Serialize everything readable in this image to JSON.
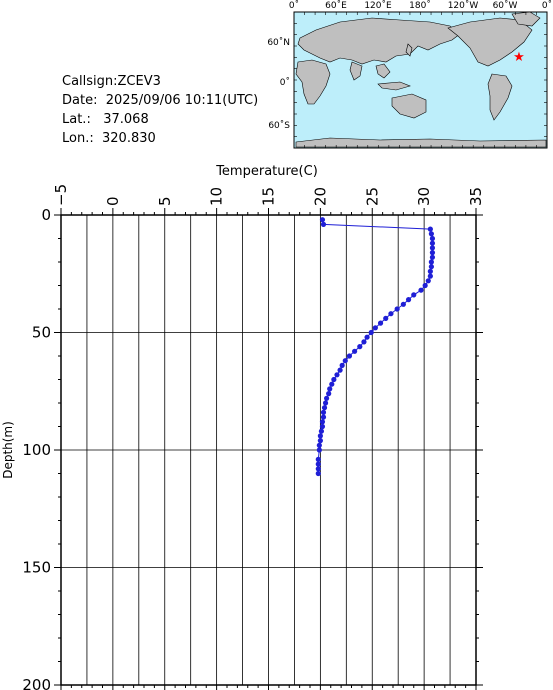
{
  "info": {
    "callsign_label": "Callsign:",
    "callsign": "ZCEV3",
    "date_label": "Date:",
    "date": "2025/09/06 10:11(UTC)",
    "lat_label": "Lat.:",
    "lat": "37.068",
    "lon_label": "Lon.:",
    "lon": "320.830"
  },
  "map": {
    "top_labels": [
      "0˚",
      "60˚E",
      "120˚E",
      "180˚",
      "120˚W",
      "60˚W",
      "0˚"
    ],
    "left_labels": [
      "60˚N",
      "0˚",
      "60˚S"
    ],
    "ocean_color": "#bdeefa",
    "land_color": "#bfbfbf",
    "marker_color": "#ff0000",
    "marker_icon": "star-icon"
  },
  "chart_data": {
    "type": "line",
    "title": "",
    "xlabel": "Temperature(C)",
    "ylabel": "Depth(m)",
    "xlim": [
      -5,
      35
    ],
    "ylim": [
      0,
      200
    ],
    "y_inverted": true,
    "x_ticks": [
      "−5",
      "0",
      "5",
      "10",
      "15",
      "20",
      "25",
      "30",
      "35"
    ],
    "y_ticks": [
      "0",
      "50",
      "100",
      "150",
      "200"
    ],
    "grid": true,
    "series_color": "#1f1fd6",
    "series": [
      {
        "x": [
          20.2,
          20.3,
          30.6,
          30.7,
          30.8,
          30.8,
          30.8,
          30.8,
          30.8,
          30.7,
          30.7,
          30.6,
          30.6,
          30.4,
          30.1,
          29.7,
          29.0,
          28.5,
          28.0,
          27.4,
          26.8,
          26.3,
          25.8,
          25.3,
          24.9,
          24.5,
          24.2,
          23.8,
          23.3,
          22.8,
          22.4,
          22.1,
          21.9,
          21.6,
          21.3,
          21.1,
          20.9,
          20.8,
          20.6,
          20.5,
          20.4,
          20.3,
          20.3,
          20.2,
          20.2,
          20.1,
          20.0,
          20.0,
          19.9,
          19.9,
          19.8,
          19.8,
          19.8,
          19.8
        ],
        "y": [
          2,
          4,
          6,
          8,
          10,
          12,
          14,
          16,
          18,
          20,
          22,
          24,
          26,
          28,
          30,
          32,
          34,
          36,
          38,
          40,
          42,
          44,
          46,
          48,
          50,
          52,
          54,
          56,
          58,
          60,
          62,
          64,
          66,
          68,
          70,
          72,
          74,
          76,
          78,
          80,
          82,
          84,
          86,
          88,
          90,
          92,
          94,
          96,
          98,
          100,
          104,
          106,
          108,
          110
        ]
      }
    ]
  }
}
